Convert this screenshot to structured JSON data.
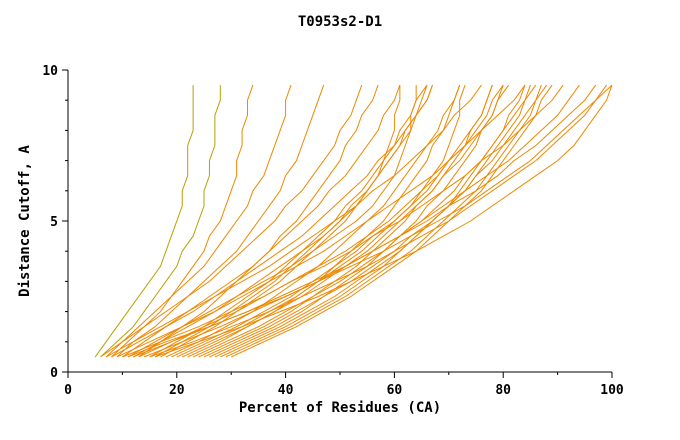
{
  "chart_data": {
    "type": "line",
    "title": "T0953s2-D1",
    "xlabel": "Percent of Residues (CA)",
    "ylabel": "Distance Cutoff, A",
    "xlim": [
      0,
      100
    ],
    "ylim": [
      0,
      10
    ],
    "x_ticks": [
      0,
      20,
      40,
      60,
      80,
      100
    ],
    "x_minor_ticks": [
      10,
      30,
      50,
      70,
      90
    ],
    "y_ticks": [
      0,
      5,
      10
    ],
    "y_minor_ticks": [
      1,
      2,
      3,
      4,
      6,
      7,
      8,
      9
    ],
    "grid": false,
    "legend": "none",
    "line_color": "#ee8800",
    "alt_line_color": "#b8a000",
    "axis_color": "#000000",
    "cutoffs": [
      0.5,
      1.0,
      1.5,
      2.0,
      2.5,
      3.0,
      3.5,
      4.0,
      4.5,
      5.0,
      5.5,
      6.0,
      6.5,
      7.0,
      7.5,
      8.0,
      8.5,
      9.0,
      9.5
    ],
    "series": [
      {
        "color": "#b8a000",
        "percents": [
          5,
          7,
          9,
          11,
          13,
          15,
          17,
          18,
          19,
          20,
          21,
          21,
          22,
          22,
          22,
          23,
          23,
          23,
          23
        ]
      },
      {
        "color": "#b8a000",
        "percents": [
          6,
          9,
          12,
          14,
          16,
          18,
          20,
          21,
          23,
          24,
          25,
          25,
          26,
          26,
          27,
          27,
          27,
          28,
          28
        ]
      },
      {
        "percents": [
          8,
          11,
          14,
          17,
          19,
          21,
          23,
          25,
          26,
          28,
          29,
          30,
          31,
          31,
          32,
          32,
          33,
          33,
          34
        ]
      },
      {
        "percents": [
          7,
          10,
          13,
          16,
          19,
          22,
          25,
          27,
          29,
          31,
          33,
          34,
          36,
          37,
          38,
          39,
          40,
          40,
          41
        ]
      },
      {
        "percents": [
          9,
          12,
          16,
          19,
          22,
          25,
          28,
          31,
          33,
          35,
          37,
          39,
          40,
          42,
          43,
          44,
          45,
          46,
          47
        ]
      },
      {
        "percents": [
          6,
          10,
          14,
          18,
          22,
          26,
          29,
          32,
          35,
          38,
          40,
          43,
          45,
          47,
          49,
          50,
          52,
          53,
          54
        ]
      },
      {
        "percents": [
          10,
          14,
          18,
          22,
          26,
          30,
          34,
          37,
          40,
          43,
          46,
          48,
          51,
          53,
          55,
          57,
          58,
          60,
          61
        ]
      },
      {
        "percents": [
          8,
          13,
          18,
          23,
          27,
          31,
          35,
          39,
          43,
          46,
          49,
          52,
          55,
          57,
          60,
          62,
          64,
          66,
          67
        ]
      },
      {
        "percents": [
          12,
          17,
          22,
          27,
          31,
          35,
          39,
          43,
          47,
          50,
          53,
          55,
          57,
          58,
          59,
          60,
          60,
          61,
          61
        ]
      },
      {
        "percents": [
          7,
          12,
          17,
          22,
          27,
          32,
          37,
          41,
          45,
          49,
          53,
          56,
          60,
          63,
          66,
          69,
          71,
          74,
          76
        ]
      },
      {
        "percents": [
          11,
          16,
          21,
          26,
          31,
          36,
          41,
          45,
          49,
          53,
          56,
          58,
          60,
          61,
          62,
          63,
          63,
          64,
          64
        ]
      },
      {
        "percents": [
          9,
          15,
          21,
          27,
          32,
          37,
          42,
          47,
          51,
          55,
          59,
          63,
          67,
          70,
          73,
          76,
          79,
          82,
          84
        ]
      },
      {
        "percents": [
          13,
          19,
          25,
          31,
          36,
          41,
          46,
          51,
          55,
          59,
          62,
          65,
          67,
          69,
          70,
          71,
          72,
          72,
          73
        ]
      },
      {
        "percents": [
          10,
          17,
          24,
          30,
          36,
          41,
          47,
          52,
          56,
          61,
          65,
          69,
          73,
          76,
          80,
          83,
          86,
          89,
          91
        ]
      },
      {
        "percents": [
          14,
          21,
          28,
          34,
          40,
          46,
          51,
          56,
          61,
          65,
          69,
          73,
          77,
          81,
          84,
          87,
          90,
          92,
          94
        ]
      },
      {
        "percents": [
          12,
          19,
          26,
          33,
          39,
          45,
          51,
          56,
          61,
          66,
          70,
          75,
          79,
          82,
          86,
          89,
          92,
          95,
          97
        ]
      },
      {
        "percents": [
          15,
          23,
          30,
          37,
          43,
          49,
          55,
          60,
          65,
          70,
          74,
          78,
          82,
          86,
          89,
          92,
          95,
          97,
          99
        ]
      },
      {
        "percents": [
          11,
          18,
          26,
          33,
          40,
          46,
          52,
          58,
          63,
          68,
          73,
          77,
          81,
          85,
          88,
          91,
          94,
          97,
          100
        ]
      },
      {
        "percents": [
          16,
          24,
          32,
          39,
          46,
          52,
          58,
          64,
          69,
          74,
          78,
          82,
          86,
          90,
          93,
          95,
          97,
          99,
          100
        ]
      },
      {
        "percents": [
          20,
          26,
          32,
          37,
          42,
          46,
          50,
          54,
          57,
          60,
          63,
          66,
          68,
          70,
          72,
          74,
          76,
          77,
          78
        ]
      },
      {
        "percents": [
          24,
          30,
          36,
          41,
          45,
          49,
          53,
          56,
          59,
          62,
          64,
          67,
          69,
          71,
          73,
          74,
          76,
          77,
          78
        ]
      },
      {
        "percents": [
          18,
          24,
          29,
          34,
          38,
          42,
          46,
          49,
          52,
          55,
          58,
          60,
          62,
          64,
          66,
          68,
          69,
          71,
          72
        ]
      },
      {
        "percents": [
          22,
          28,
          33,
          38,
          42,
          46,
          49,
          52,
          55,
          58,
          60,
          62,
          64,
          66,
          67,
          69,
          70,
          71,
          72
        ]
      },
      {
        "percents": [
          26,
          32,
          38,
          43,
          47,
          51,
          55,
          58,
          61,
          64,
          66,
          69,
          71,
          73,
          75,
          76,
          78,
          79,
          80
        ]
      },
      {
        "percents": [
          28,
          34,
          40,
          45,
          50,
          54,
          58,
          61,
          64,
          67,
          70,
          72,
          74,
          76,
          78,
          80,
          81,
          83,
          84
        ]
      },
      {
        "percents": [
          17,
          22,
          27,
          31,
          35,
          39,
          42,
          45,
          48,
          51,
          53,
          55,
          57,
          59,
          61,
          62,
          64,
          65,
          66
        ]
      },
      {
        "percents": [
          21,
          27,
          33,
          38,
          43,
          47,
          51,
          55,
          58,
          61,
          64,
          67,
          69,
          72,
          74,
          76,
          78,
          79,
          81
        ]
      },
      {
        "percents": [
          25,
          31,
          37,
          42,
          47,
          52,
          56,
          60,
          63,
          67,
          70,
          73,
          75,
          78,
          80,
          82,
          84,
          86,
          87
        ]
      },
      {
        "percents": [
          30,
          36,
          42,
          47,
          52,
          56,
          60,
          64,
          67,
          70,
          73,
          76,
          78,
          80,
          82,
          84,
          86,
          87,
          89
        ]
      },
      {
        "percents": [
          13,
          17,
          21,
          25,
          28,
          31,
          34,
          37,
          39,
          42,
          44,
          46,
          48,
          50,
          51,
          53,
          54,
          56,
          57
        ]
      },
      {
        "percents": [
          19,
          25,
          31,
          36,
          41,
          45,
          49,
          53,
          56,
          60,
          63,
          65,
          68,
          70,
          73,
          75,
          77,
          78,
          80
        ]
      },
      {
        "percents": [
          23,
          29,
          35,
          40,
          45,
          50,
          54,
          58,
          61,
          65,
          68,
          71,
          73,
          76,
          78,
          80,
          82,
          84,
          85
        ]
      },
      {
        "percents": [
          15,
          20,
          25,
          29,
          33,
          37,
          40,
          43,
          46,
          49,
          51,
          54,
          56,
          58,
          60,
          61,
          63,
          64,
          66
        ]
      },
      {
        "percents": [
          27,
          33,
          39,
          44,
          49,
          53,
          57,
          61,
          64,
          67,
          70,
          73,
          75,
          77,
          79,
          81,
          83,
          84,
          86
        ]
      },
      {
        "percents": [
          16,
          21,
          26,
          30,
          34,
          38,
          41,
          44,
          47,
          50,
          52,
          55,
          57,
          59,
          61,
          63,
          64,
          66,
          67
        ]
      },
      {
        "percents": [
          29,
          35,
          41,
          46,
          51,
          55,
          59,
          63,
          66,
          69,
          72,
          75,
          77,
          79,
          81,
          83,
          85,
          86,
          88
        ]
      }
    ]
  }
}
